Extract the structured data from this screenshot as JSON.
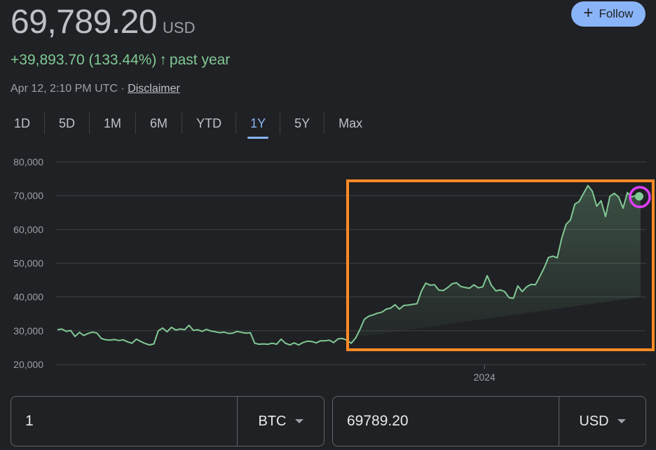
{
  "quote": {
    "price": "69,789.20",
    "currency": "USD",
    "change": "+39,893.70 (133.44%)",
    "change_arrow": "↑",
    "change_period": "past year",
    "timestamp": "Apr 12, 2:10 PM UTC",
    "separator": "·",
    "disclaimer": "Disclaimer"
  },
  "follow": {
    "label": "Follow",
    "icon": "plus-icon"
  },
  "tabs": [
    {
      "label": "1D"
    },
    {
      "label": "5D"
    },
    {
      "label": "1M"
    },
    {
      "label": "6M"
    },
    {
      "label": "YTD"
    },
    {
      "label": "1Y",
      "active": true
    },
    {
      "label": "5Y"
    },
    {
      "label": "Max"
    }
  ],
  "converter": {
    "from_value": "1",
    "from_unit": "BTC",
    "to_value": "69789.20",
    "to_unit": "USD"
  },
  "colors": {
    "line": "#81c995",
    "accent": "#8ab4f8",
    "highlight_box": "#ff8a26",
    "highlight_circle": "#e040fb"
  },
  "chart_data": {
    "type": "line",
    "ylim": [
      20000,
      80000
    ],
    "yticks": [
      "80,000",
      "70,000",
      "60,000",
      "50,000",
      "40,000",
      "30,000",
      "20,000"
    ],
    "ytick_values": [
      80000,
      70000,
      60000,
      50000,
      40000,
      30000,
      20000
    ],
    "xticks": [
      {
        "label": "2024",
        "x": 0.726
      }
    ],
    "grid": true,
    "series": [
      {
        "values": [
          30300,
          30500,
          29800,
          30100,
          28300,
          29500,
          28600,
          29200,
          29600,
          29300,
          27700,
          27300,
          27200,
          27400,
          27100,
          27300,
          26700,
          26300,
          27500,
          26800,
          26200,
          25800,
          26100,
          30000,
          30800,
          29700,
          31000,
          30200,
          30500,
          30300,
          31600,
          30100,
          30300,
          29800,
          30400,
          29900,
          29700,
          29400,
          29600,
          29200,
          29300,
          29800,
          29500,
          29300,
          29400,
          26300,
          26000,
          26100,
          26000,
          26300,
          26000,
          27500,
          26300,
          25800,
          26400,
          25800,
          26500,
          26900,
          26800,
          26400,
          27000,
          27000,
          27200,
          26500,
          27600,
          27700,
          27200,
          26300,
          27800,
          30400,
          33400,
          34300,
          34700,
          35200,
          35500,
          36400,
          36700,
          37700,
          36400,
          37500,
          37600,
          37800,
          38000,
          41700,
          44100,
          43500,
          43600,
          42000,
          41900,
          42800,
          43900,
          44200,
          43100,
          42800,
          42600,
          43600,
          42700,
          43000,
          46300,
          43400,
          41800,
          42100,
          41600,
          39800,
          39600,
          43300,
          41600,
          43000,
          43700,
          43600,
          46000,
          48600,
          51700,
          52100,
          51600,
          57300,
          61500,
          62800,
          67500,
          68300,
          70700,
          73000,
          71300,
          66900,
          68500,
          63800,
          69800,
          70700,
          69600,
          66300,
          70900,
          69600,
          70100,
          69789
        ]
      }
    ]
  }
}
